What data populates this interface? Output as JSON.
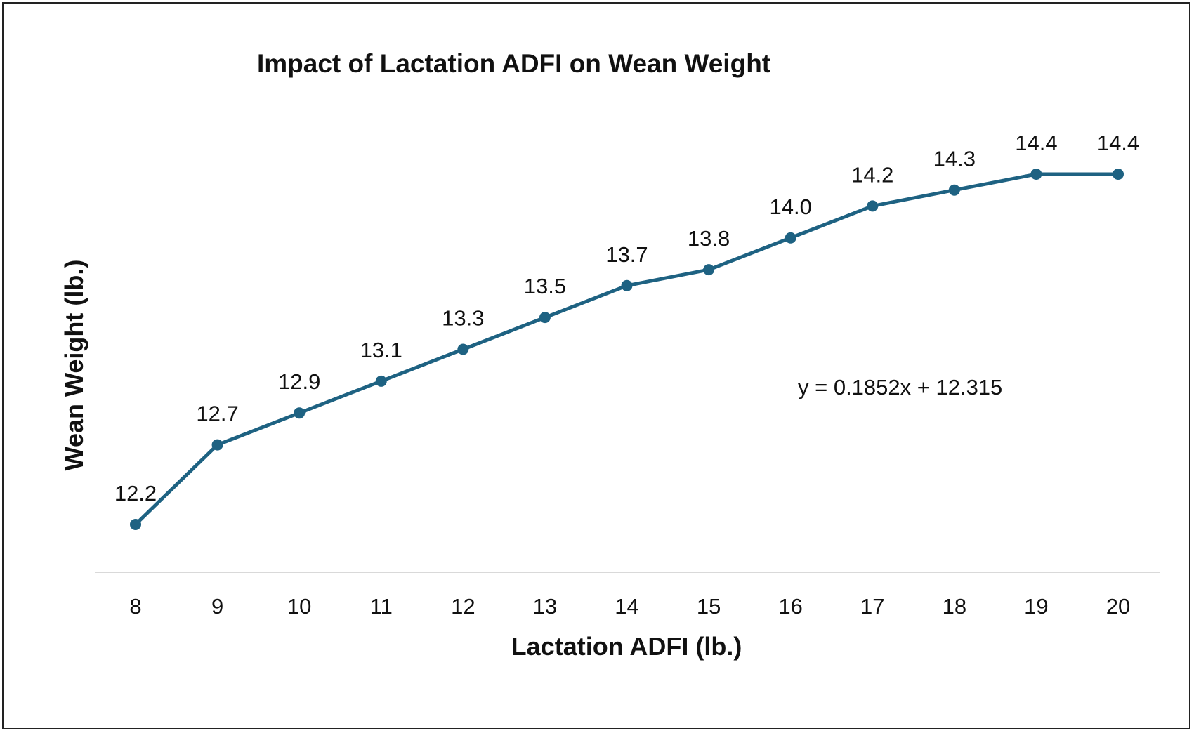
{
  "chart_data": {
    "type": "line",
    "title": "Impact of Lactation ADFI on Wean Weight",
    "xlabel": "Lactation ADFI (lb.)",
    "ylabel": "Wean Weight (lb.)",
    "x": [
      "8",
      "9",
      "10",
      "11",
      "12",
      "13",
      "14",
      "15",
      "16",
      "17",
      "18",
      "19",
      "20"
    ],
    "series": [
      {
        "values": [
          12.2,
          12.7,
          12.9,
          13.1,
          13.3,
          13.5,
          13.7,
          13.8,
          14.0,
          14.2,
          14.3,
          14.4,
          14.4
        ],
        "value_labels": [
          "12.2",
          "12.7",
          "12.9",
          "13.1",
          "13.3",
          "13.5",
          "13.7",
          "13.8",
          "14.0",
          "14.2",
          "14.3",
          "14.4",
          "14.4"
        ],
        "color": "#1e6282"
      }
    ],
    "trendline_equation": "y = 0.1852x + 12.315",
    "ylim": [
      11.9,
      14.7
    ],
    "grid": false,
    "legend": "none"
  }
}
